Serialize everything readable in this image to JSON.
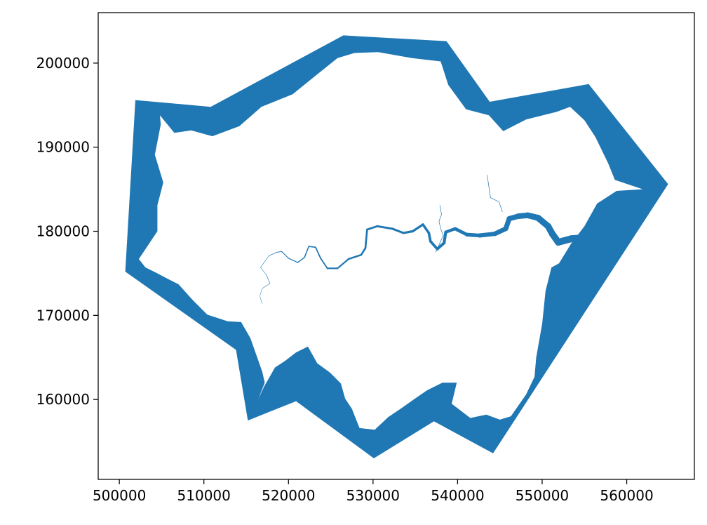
{
  "chart_data": {
    "type": "map",
    "description_free": true,
    "xlim": [
      497500,
      568000
    ],
    "ylim": [
      150500,
      206000
    ],
    "x_ticks": [
      500000,
      510000,
      520000,
      530000,
      540000,
      550000,
      560000
    ],
    "y_ticks": [
      160000,
      170000,
      180000,
      190000,
      200000
    ],
    "x_tick_labels": [
      "500000",
      "510000",
      "520000",
      "530000",
      "540000",
      "550000",
      "560000"
    ],
    "y_tick_labels": [
      "160000",
      "170000",
      "180000",
      "190000",
      "200000"
    ],
    "grid": false,
    "fill_color": "#1f77b4",
    "hole_color": "#ffffff",
    "outer_polygon": [
      [
        501900,
        195600
      ],
      [
        510800,
        194800
      ],
      [
        526500,
        203300
      ],
      [
        538700,
        202600
      ],
      [
        543800,
        195400
      ],
      [
        555500,
        197500
      ],
      [
        564900,
        185600
      ],
      [
        544200,
        153600
      ],
      [
        537200,
        157400
      ],
      [
        530100,
        153000
      ],
      [
        520900,
        159800
      ],
      [
        515200,
        157500
      ],
      [
        513800,
        165900
      ],
      [
        500700,
        175200
      ]
    ],
    "london_boundary": [
      [
        504800,
        193800
      ],
      [
        506500,
        191700
      ],
      [
        508500,
        192000
      ],
      [
        511000,
        191300
      ],
      [
        514200,
        192500
      ],
      [
        516800,
        194800
      ],
      [
        520500,
        196300
      ],
      [
        523200,
        198500
      ],
      [
        525800,
        200600
      ],
      [
        527800,
        201200
      ],
      [
        530600,
        201300
      ],
      [
        534600,
        200600
      ],
      [
        538000,
        200200
      ],
      [
        538900,
        197400
      ],
      [
        541000,
        194500
      ],
      [
        543700,
        193800
      ],
      [
        545400,
        191900
      ],
      [
        548100,
        193300
      ],
      [
        551700,
        194200
      ],
      [
        553300,
        194800
      ],
      [
        555000,
        193200
      ],
      [
        556300,
        191200
      ],
      [
        557800,
        188100
      ],
      [
        558600,
        186100
      ],
      [
        561900,
        185000
      ],
      [
        558800,
        184800
      ],
      [
        556500,
        183300
      ],
      [
        555000,
        180600
      ],
      [
        553400,
        178500
      ],
      [
        552000,
        176200
      ],
      [
        551100,
        175700
      ],
      [
        550400,
        172900
      ],
      [
        550000,
        169000
      ],
      [
        549300,
        165000
      ],
      [
        549100,
        162700
      ],
      [
        548100,
        160600
      ],
      [
        546300,
        158000
      ],
      [
        545000,
        157600
      ],
      [
        543400,
        158200
      ],
      [
        541500,
        157800
      ],
      [
        539300,
        159500
      ],
      [
        539900,
        162000
      ],
      [
        538200,
        162000
      ],
      [
        536400,
        161100
      ],
      [
        534800,
        160000
      ],
      [
        533400,
        159000
      ],
      [
        531800,
        157900
      ],
      [
        530200,
        156400
      ],
      [
        528400,
        156600
      ],
      [
        527500,
        158900
      ],
      [
        526700,
        160100
      ],
      [
        526200,
        161900
      ],
      [
        524900,
        163200
      ],
      [
        523400,
        164300
      ],
      [
        522300,
        166300
      ],
      [
        520900,
        165600
      ],
      [
        519600,
        164600
      ],
      [
        518400,
        163800
      ],
      [
        517100,
        161500
      ],
      [
        516400,
        160000
      ],
      [
        517200,
        162000
      ],
      [
        516900,
        163300
      ],
      [
        515500,
        167300
      ],
      [
        514400,
        169200
      ],
      [
        512800,
        169300
      ],
      [
        510400,
        170100
      ],
      [
        508700,
        171800
      ],
      [
        507000,
        173700
      ],
      [
        505800,
        174300
      ],
      [
        504300,
        175100
      ],
      [
        503100,
        175700
      ],
      [
        502300,
        176700
      ],
      [
        504500,
        180000
      ],
      [
        504500,
        183100
      ],
      [
        505200,
        185800
      ],
      [
        504200,
        189100
      ],
      [
        504900,
        192700
      ]
    ],
    "river_thames": [
      [
        516900,
        171400
      ],
      [
        516600,
        172300
      ],
      [
        516900,
        173200
      ],
      [
        517800,
        173800
      ],
      [
        517400,
        174800
      ],
      [
        516700,
        175700
      ],
      [
        517700,
        177100
      ],
      [
        518600,
        177500
      ],
      [
        519200,
        177600
      ],
      [
        520000,
        176800
      ],
      [
        521100,
        176300
      ],
      [
        521900,
        176900
      ],
      [
        522400,
        178200
      ],
      [
        523200,
        178100
      ],
      [
        523800,
        176800
      ],
      [
        524600,
        175600
      ],
      [
        525800,
        175600
      ],
      [
        527100,
        176700
      ],
      [
        528600,
        177200
      ],
      [
        529100,
        178000
      ],
      [
        529300,
        180200
      ],
      [
        530500,
        180600
      ],
      [
        532300,
        180300
      ],
      [
        533600,
        179800
      ],
      [
        534700,
        180000
      ],
      [
        535900,
        180800
      ],
      [
        536600,
        179800
      ],
      [
        536800,
        178800
      ],
      [
        537600,
        177900
      ],
      [
        538400,
        178600
      ],
      [
        538600,
        179900
      ],
      [
        539700,
        180300
      ],
      [
        541100,
        179600
      ],
      [
        542600,
        179500
      ],
      [
        544400,
        179700
      ],
      [
        545700,
        180300
      ],
      [
        546100,
        181500
      ],
      [
        547200,
        181800
      ],
      [
        548300,
        181900
      ],
      [
        549500,
        181600
      ],
      [
        550700,
        180600
      ],
      [
        551200,
        179700
      ],
      [
        551900,
        178700
      ],
      [
        553400,
        179100
      ],
      [
        554900,
        179200
      ]
    ],
    "river_widths": [
      [
        516900,
        0.5
      ],
      [
        520000,
        1.2
      ],
      [
        525000,
        2.0
      ],
      [
        530000,
        2.8
      ],
      [
        536000,
        3.4
      ],
      [
        540000,
        4.6
      ],
      [
        545000,
        6.6
      ],
      [
        550000,
        9.0
      ],
      [
        555000,
        10.5
      ]
    ],
    "tributaries": [
      [
        [
          537400,
          177500
        ],
        [
          537900,
          178600
        ],
        [
          538300,
          179500
        ],
        [
          538000,
          180300
        ],
        [
          537800,
          181200
        ],
        [
          538100,
          182000
        ],
        [
          537900,
          183100
        ]
      ],
      [
        [
          543500,
          186700
        ],
        [
          543700,
          185300
        ],
        [
          543900,
          184000
        ],
        [
          544900,
          183500
        ],
        [
          545300,
          182300
        ]
      ]
    ]
  }
}
